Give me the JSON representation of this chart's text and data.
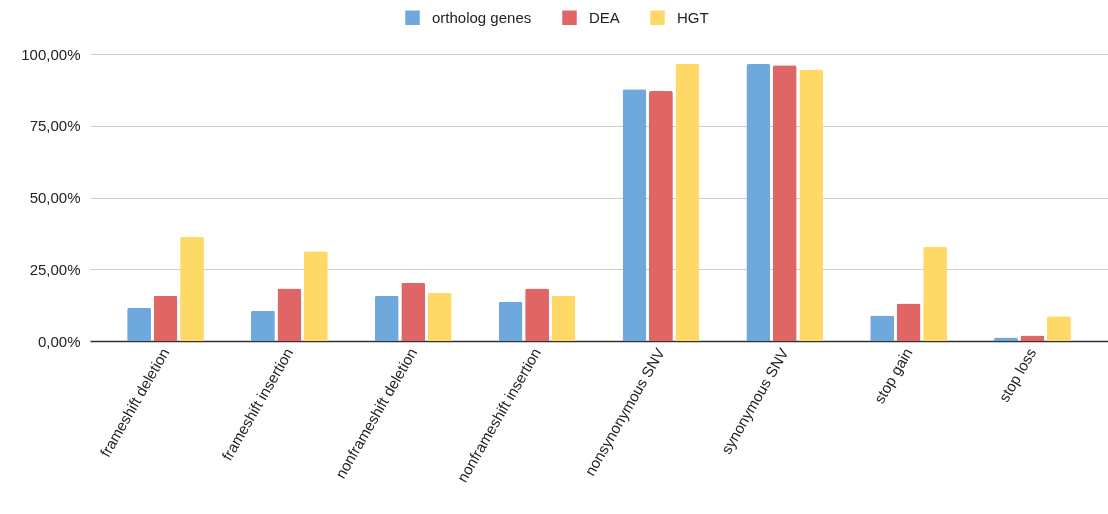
{
  "chart_data": {
    "type": "bar",
    "categories": [
      "frameshift deletion",
      "frameshift insertion",
      "nonframeshift deletion",
      "nonframeshift insertion",
      "nonsynonymous SNV",
      "synonymous SNV",
      "stop gain",
      "stop loss"
    ],
    "series": [
      {
        "name": "ortholog genes",
        "color": "#6fa8dc",
        "values": [
          11.6,
          10.5,
          15.8,
          13.7,
          87.7,
          96.5,
          8.9,
          1.2
        ]
      },
      {
        "name": "DEA",
        "color": "#e06666",
        "values": [
          15.8,
          18.3,
          20.3,
          18.3,
          87.1,
          96.1,
          13.1,
          1.9
        ]
      },
      {
        "name": "HGT",
        "color": "#ffd966",
        "values": [
          36.3,
          31.3,
          16.8,
          15.8,
          96.5,
          94.4,
          32.8,
          8.6
        ]
      }
    ],
    "ylim": [
      0,
      100
    ],
    "yticks": [
      {
        "value": 0,
        "label": "0,00%"
      },
      {
        "value": 25,
        "label": "25,00%"
      },
      {
        "value": 50,
        "label": "50,00%"
      },
      {
        "value": 75,
        "label": "75,00%"
      },
      {
        "value": 100,
        "label": "100,00%"
      }
    ],
    "grid": "y",
    "legend": "top"
  }
}
